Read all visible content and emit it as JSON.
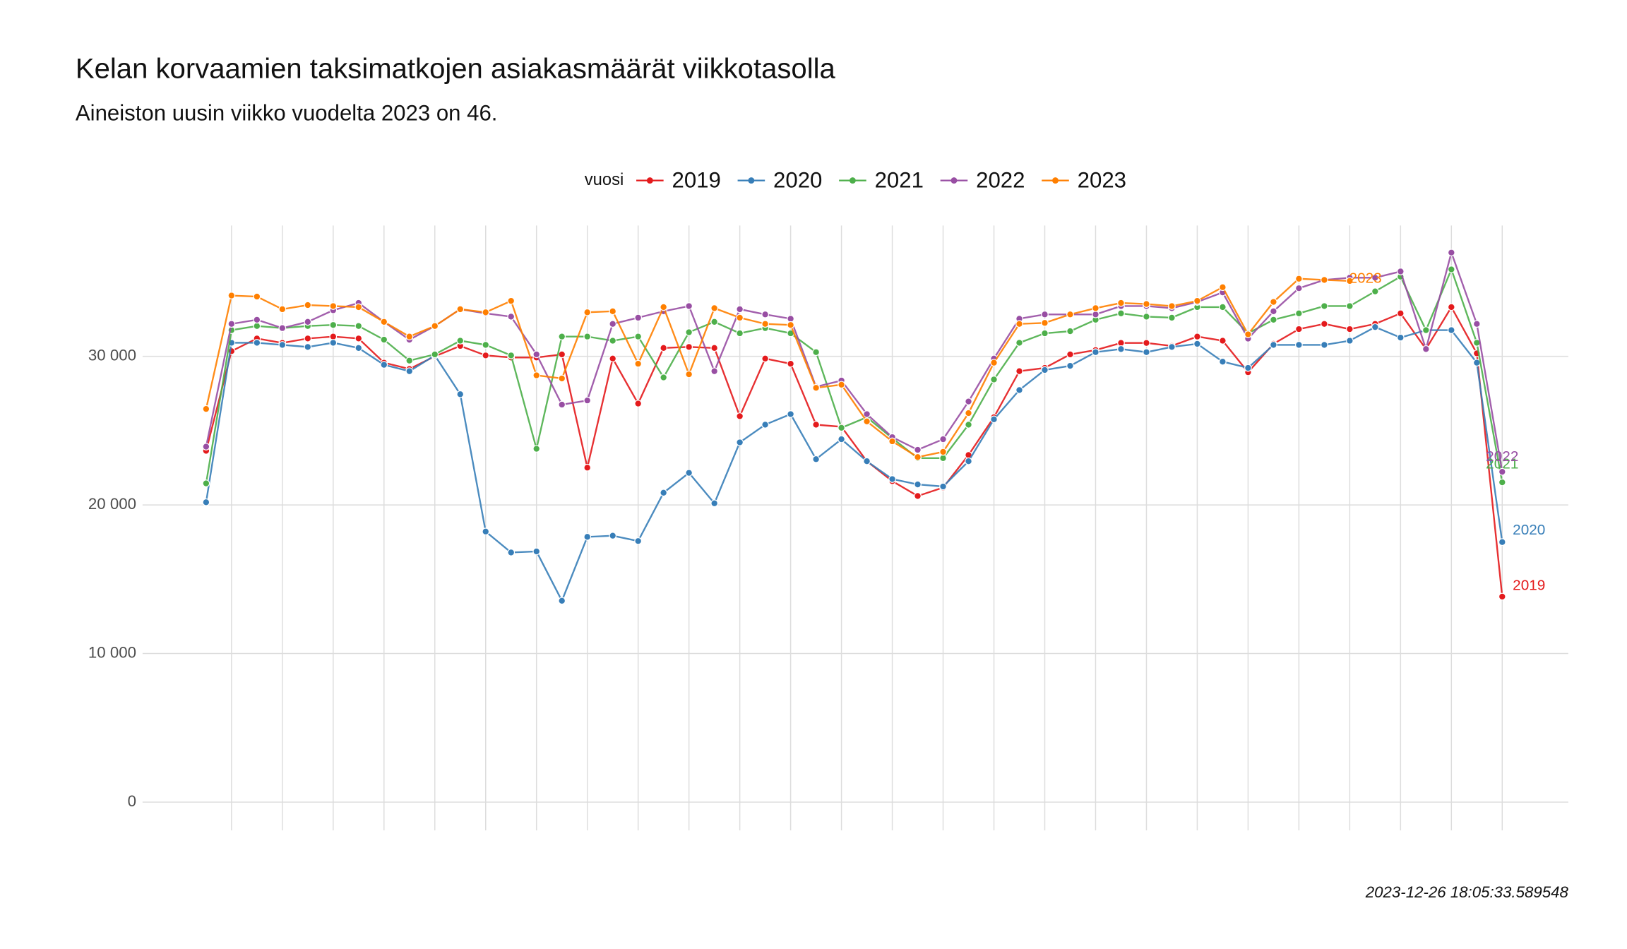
{
  "chart_data": {
    "type": "line",
    "title": "Kelan korvaamien taksimatkojen asiakasmäärät viikkotasolla",
    "subtitle": "Aineiston uusin viikko vuodelta 2023 on 46.",
    "legend_title": "vuosi",
    "caption": "2023-12-26 18:05:33.589548",
    "x": [
      1,
      2,
      3,
      4,
      5,
      6,
      7,
      8,
      9,
      10,
      11,
      12,
      13,
      14,
      15,
      16,
      17,
      18,
      19,
      20,
      21,
      22,
      23,
      24,
      25,
      26,
      27,
      28,
      29,
      30,
      31,
      32,
      33,
      34,
      35,
      36,
      37,
      38,
      39,
      40,
      41,
      42,
      43,
      44,
      45,
      46,
      47,
      48,
      49,
      50,
      51,
      52
    ],
    "xlim": [
      -1.5,
      54.6
    ],
    "xticks": [
      2,
      4,
      6,
      8,
      10,
      12,
      14,
      16,
      18,
      20,
      22,
      24,
      26,
      28,
      30,
      32,
      34,
      36,
      38,
      40,
      42,
      44,
      46,
      48,
      50,
      52
    ],
    "ylim": [
      -1900,
      38800
    ],
    "yticks": [
      0,
      {
        "value": 10000,
        "label": "10 000"
      },
      {
        "value": 20000,
        "label": "20 000"
      },
      {
        "value": 30000,
        "label": "30 000"
      }
    ],
    "grid": true,
    "legend_position": "top",
    "series": [
      {
        "name": "2019",
        "color": "#e41a1c",
        "values": [
          23640,
          30350,
          31200,
          30900,
          31200,
          31330,
          31200,
          29570,
          29150,
          30000,
          30700,
          30060,
          29920,
          29920,
          30130,
          22510,
          29850,
          26820,
          30560,
          30630,
          30560,
          25970,
          29850,
          29500,
          25400,
          25260,
          22940,
          21600,
          20600,
          21170,
          23360,
          25900,
          29000,
          29220,
          30130,
          30420,
          30900,
          30900,
          30700,
          31330,
          31050,
          28930,
          30840,
          31830,
          32180,
          31830,
          32180,
          32890,
          30490,
          33310,
          30200,
          13830
        ]
      },
      {
        "name": "2020",
        "color": "#377eb8",
        "values": [
          20180,
          30910,
          30910,
          30770,
          30630,
          30910,
          30560,
          29430,
          29000,
          30060,
          27450,
          18210,
          16800,
          16870,
          13550,
          17850,
          17930,
          17570,
          20820,
          22160,
          20110,
          24210,
          25400,
          26110,
          23080,
          24420,
          22940,
          21740,
          21380,
          21240,
          22940,
          25760,
          27730,
          29080,
          29360,
          30280,
          30490,
          30280,
          30630,
          30840,
          29640,
          29220,
          30770,
          30770,
          30770,
          31050,
          31970,
          31260,
          31760,
          31760,
          29570,
          17500
        ]
      },
      {
        "name": "2021",
        "color": "#4daf4a",
        "values": [
          21450,
          31760,
          32040,
          31900,
          32040,
          32110,
          32040,
          31120,
          29710,
          30130,
          31050,
          30770,
          30060,
          23780,
          31330,
          31330,
          31050,
          31330,
          28580,
          31620,
          32320,
          31550,
          31900,
          31550,
          30280,
          25190,
          25900,
          24490,
          23150,
          23150,
          25400,
          28440,
          30910,
          31550,
          31690,
          32460,
          32890,
          32670,
          32600,
          33310,
          33310,
          31550,
          32460,
          32890,
          33380,
          33380,
          34370,
          35360,
          31760,
          35850,
          30910,
          21520
        ]
      },
      {
        "name": "2022",
        "color": "#984ea3",
        "values": [
          23920,
          32180,
          32460,
          31900,
          32320,
          33100,
          33590,
          32320,
          31120,
          32040,
          33170,
          32890,
          32670,
          30130,
          26750,
          27030,
          32180,
          32600,
          33030,
          33380,
          29000,
          33170,
          32820,
          32530,
          27950,
          28370,
          26110,
          24560,
          23710,
          24420,
          26960,
          29850,
          32530,
          32820,
          32820,
          32820,
          33380,
          33380,
          33240,
          33660,
          34300,
          31190,
          33030,
          34580,
          35140,
          35290,
          35290,
          35710,
          30490,
          36980,
          32180,
          22230
        ]
      },
      {
        "name": "2023",
        "color": "#ff7f00",
        "values": [
          26460,
          34090,
          34020,
          33170,
          33450,
          33380,
          33310,
          32320,
          31330,
          32040,
          33170,
          32960,
          33730,
          28720,
          28510,
          32960,
          33030,
          29500,
          33310,
          28790,
          33240,
          32600,
          32180,
          32110,
          27880,
          28090,
          25620,
          24280,
          23220,
          23570,
          26180,
          29570,
          32180,
          32250,
          32820,
          33240,
          33590,
          33520,
          33380,
          33730,
          34650,
          31480,
          33660,
          35220,
          35140,
          35070,
          null,
          null,
          null,
          null,
          null,
          null
        ]
      }
    ]
  }
}
